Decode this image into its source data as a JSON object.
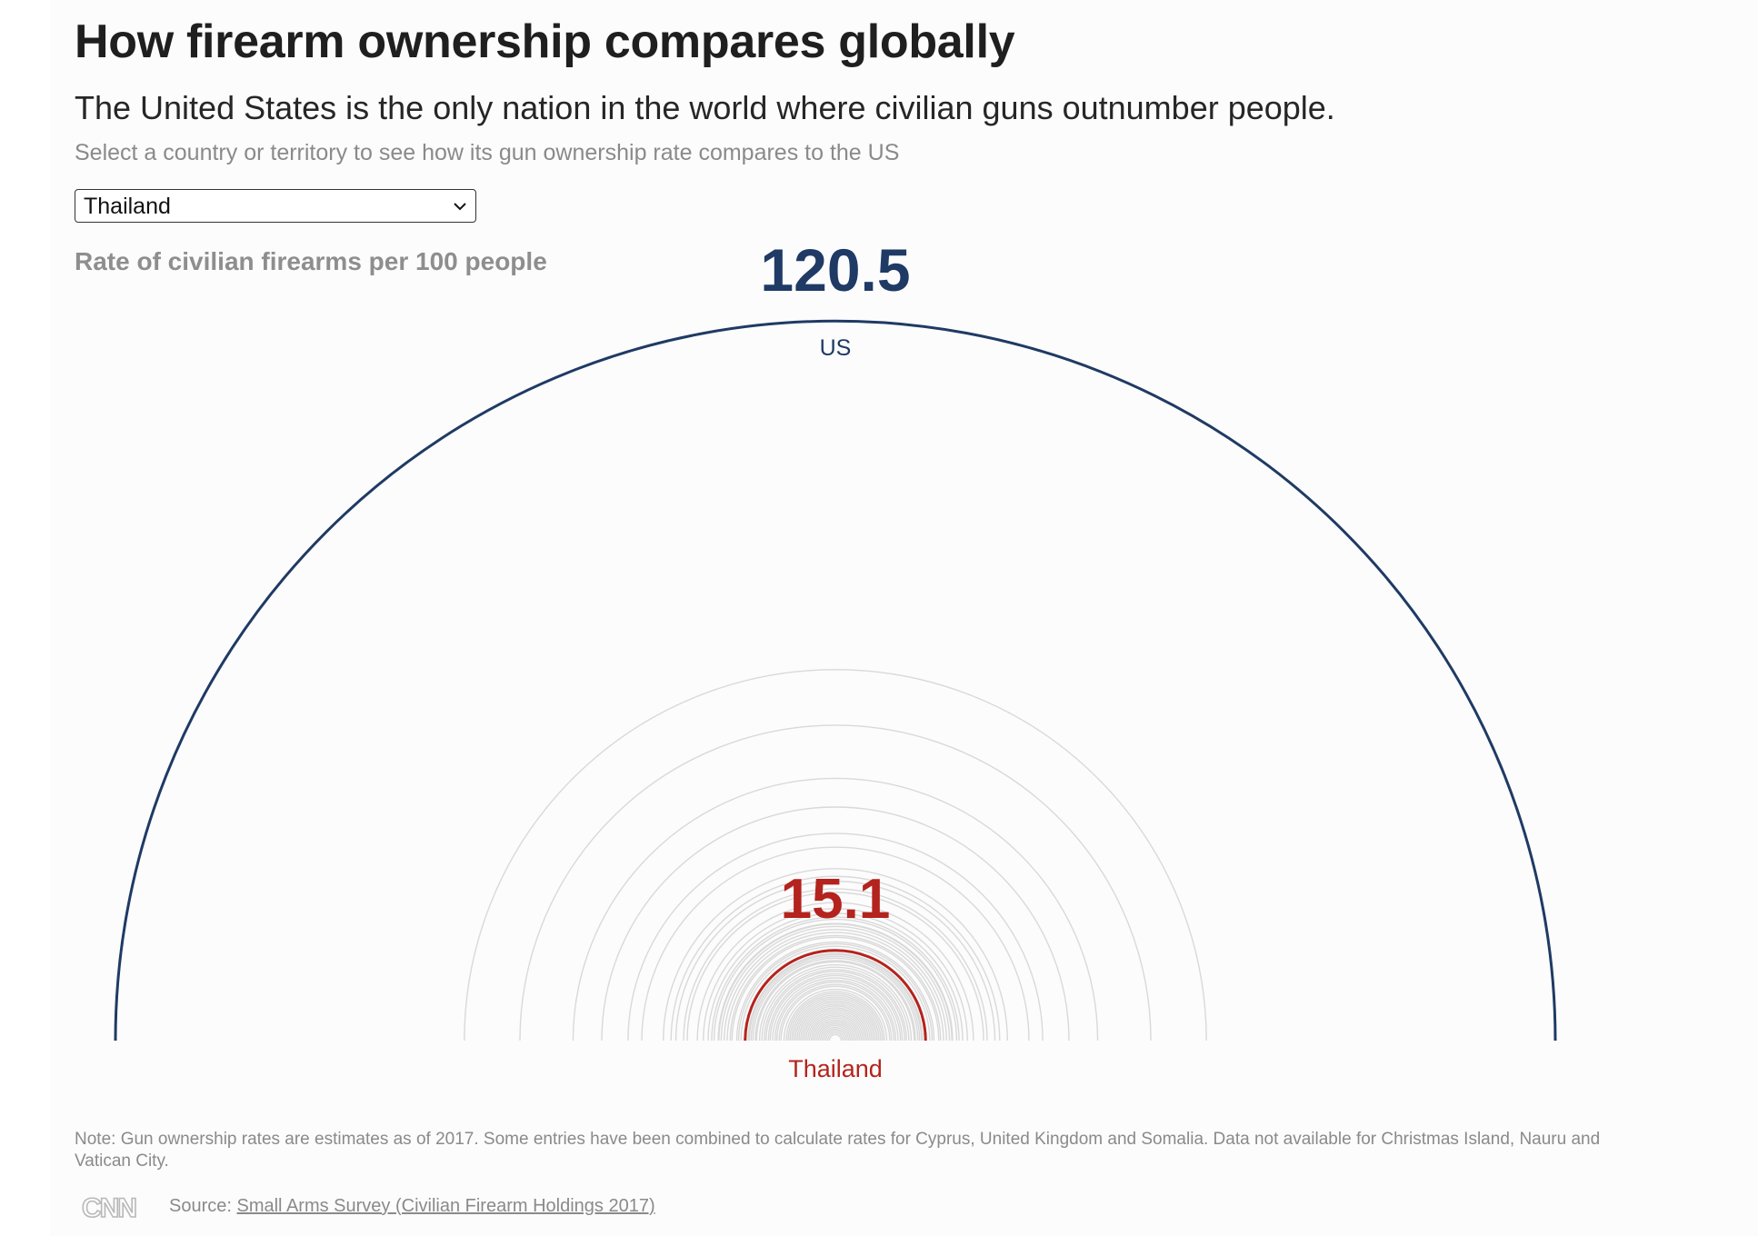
{
  "header": {
    "title": "How firearm ownership compares globally",
    "subtitle": "The United States is the only nation in the world where civilian guns outnumber people.",
    "instruction": "Select a country or territory to see how its gun ownership rate compares to the US"
  },
  "country_select": {
    "selected": "Thailand"
  },
  "rate_label": "Rate of civilian firearms per 100 people",
  "chart_data": {
    "type": "radial-arcs",
    "unit": "Rate of civilian firearms per 100 people",
    "reference": {
      "name": "US",
      "value": 120.5,
      "color": "#1f3a64"
    },
    "highlight": {
      "name": "Thailand",
      "value": 15.1,
      "color": "#b4231d"
    },
    "other_values": [
      62.1,
      52.8,
      43.9,
      39.1,
      34.7,
      32.4,
      28.8,
      27.5,
      26.7,
      25.4,
      24.8,
      23.1,
      22.1,
      21.3,
      20.7,
      20.3,
      19.6,
      19.6,
      19.5,
      19.1,
      18.6,
      18.1,
      17.6,
      17.3,
      16.5,
      16.2,
      15.8,
      14.6,
      14.4,
      14.1,
      13.8,
      13.4,
      13.2,
      12.7,
      12.3,
      11.9,
      11.6,
      11.2,
      10.9,
      10.5,
      10.1,
      9.8,
      9.4,
      9.1,
      8.6,
      8.2,
      7.9,
      7.6,
      7.3,
      7.0,
      6.7,
      6.4,
      6.1,
      5.8,
      5.5,
      5.2,
      4.9,
      4.6,
      4.3,
      4.0,
      3.7,
      3.4,
      3.1,
      2.8,
      2.5,
      2.2,
      1.9,
      1.6,
      1.3,
      1.0
    ],
    "colors": {
      "other": "#d9d9d9"
    }
  },
  "note": "Note: Gun ownership rates are estimates as of 2017. Some entries have been combined to calculate rates for Cyprus, United Kingdom and Somalia. Data not available for Christmas Island, Nauru and Vatican City.",
  "footer": {
    "source_prefix": "Source: ",
    "source_link": "Small Arms Survey (Civilian Firearm Holdings 2017)",
    "logo_text": "CNN"
  }
}
